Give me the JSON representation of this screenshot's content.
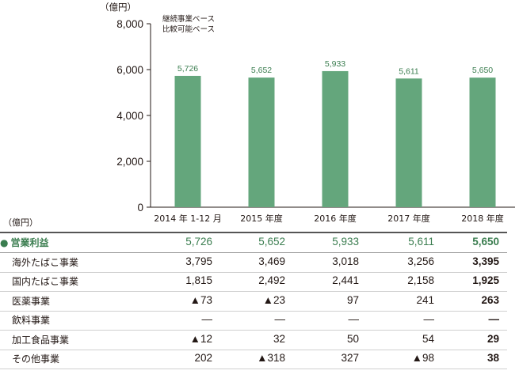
{
  "chart_data": {
    "type": "bar",
    "y_unit": "（億円）",
    "basis_note": [
      "継続事業ベース",
      "比較可能ベース"
    ],
    "categories": [
      "2014 年 1-12 月",
      "2015 年度",
      "2016 年度",
      "2017 年度",
      "2018 年度"
    ],
    "values": [
      5726,
      5652,
      5933,
      5611,
      5650
    ],
    "value_labels": [
      "5,726",
      "5,652",
      "5,933",
      "5,611",
      "5,650"
    ],
    "ylim": [
      0,
      8000
    ],
    "yticks": [
      0,
      2000,
      4000,
      6000,
      8000
    ],
    "ytick_labels": [
      "0",
      "2,000",
      "4,000",
      "6,000",
      "8,000"
    ],
    "bar_color": "#64a67c",
    "grid": false
  },
  "table": {
    "unit": "（億円）",
    "rows": [
      {
        "label": "営業利益",
        "bullet": "●",
        "values": [
          "5,726",
          "5,652",
          "5,933",
          "5,611",
          "5,650"
        ]
      },
      {
        "label": "海外たばこ事業",
        "values": [
          "3,795",
          "3,469",
          "3,018",
          "3,256",
          "3,395"
        ]
      },
      {
        "label": "国内たばこ事業",
        "values": [
          "1,815",
          "2,492",
          "2,441",
          "2,158",
          "1,925"
        ]
      },
      {
        "label": "医薬事業",
        "values": [
          "▲73",
          "▲23",
          "97",
          "241",
          "263"
        ]
      },
      {
        "label": "飲料事業",
        "values": [
          "—",
          "—",
          "—",
          "—",
          "—"
        ]
      },
      {
        "label": "加工食品事業",
        "values": [
          "▲12",
          "32",
          "50",
          "54",
          "29"
        ]
      },
      {
        "label": "その他事業",
        "values": [
          "202",
          "▲318",
          "327",
          "▲98",
          "38"
        ]
      }
    ]
  },
  "colors": {
    "accent": "#3a7d4f",
    "bar": "#64a67c",
    "text": "#231815"
  }
}
